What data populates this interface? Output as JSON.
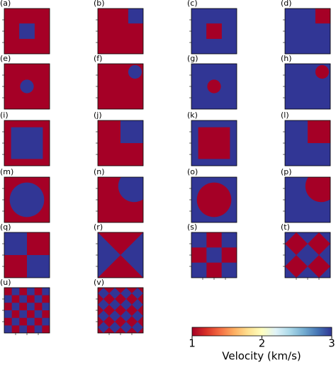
{
  "chart_data": {
    "type": "heatmap",
    "panels": [
      "(a)",
      "(b)",
      "(c)",
      "(d)",
      "(e)",
      "(f)",
      "(g)",
      "(h)",
      "(i)",
      "(j)",
      "(k)",
      "(l)",
      "(m)",
      "(n)",
      "(o)",
      "(p)",
      "(q)",
      "(r)",
      "(s)",
      "(t)",
      "(u)",
      "(v)"
    ],
    "colorbar_label": "Velocity (km/s)",
    "clim": [
      1,
      3
    ],
    "cticks": [
      1,
      2,
      3
    ],
    "colormap": [
      "#a50026",
      "#d73027",
      "#f46d43",
      "#fdae61",
      "#fee090",
      "#ffffbf",
      "#e0f3f8",
      "#abd9e9",
      "#74add1",
      "#4575b4",
      "#313695"
    ]
  }
}
